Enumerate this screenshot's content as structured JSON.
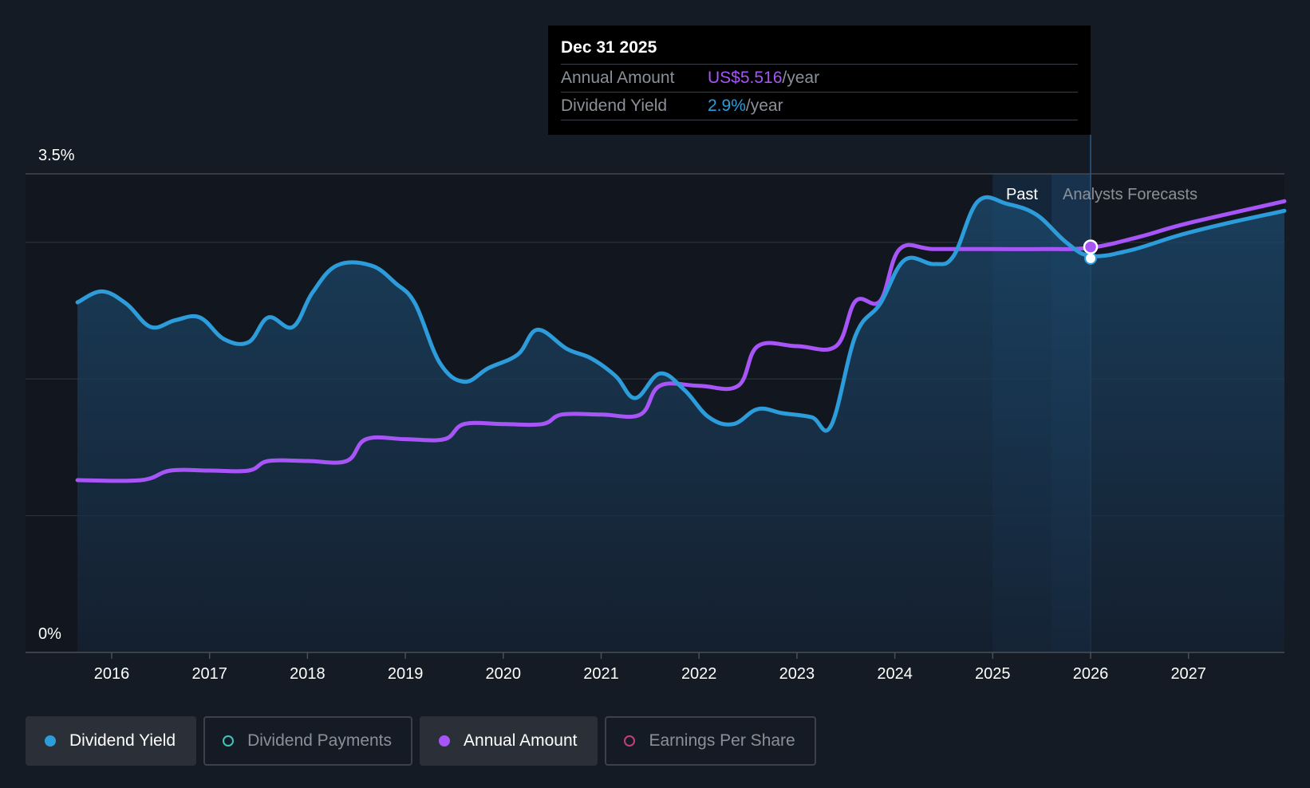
{
  "tooltip": {
    "date": "Dec 31 2025",
    "rows": [
      {
        "label": "Annual Amount",
        "value": "US$5.516",
        "unit": "/year",
        "color": "#a855f7"
      },
      {
        "label": "Dividend Yield",
        "value": "2.9%",
        "unit": "/year",
        "color": "#2d9cdb"
      }
    ]
  },
  "legend": [
    {
      "label": "Dividend Yield",
      "color": "#2d9cdb",
      "filled": true,
      "active": true
    },
    {
      "label": "Dividend Payments",
      "color": "#3fc5b8",
      "filled": false,
      "active": false
    },
    {
      "label": "Annual Amount",
      "color": "#a855f7",
      "filled": true,
      "active": true
    },
    {
      "label": "Earnings Per Share",
      "color": "#c2407a",
      "filled": false,
      "active": false
    }
  ],
  "chart_data": {
    "type": "line",
    "x_ticks": [
      "2016",
      "2017",
      "2018",
      "2019",
      "2020",
      "2021",
      "2022",
      "2023",
      "2024",
      "2025",
      "2026",
      "2027"
    ],
    "y_ticks": [
      "3.5%",
      "0%"
    ],
    "ylim": [
      0,
      3.5
    ],
    "xlim": [
      2015.65,
      2027.98
    ],
    "region_labels": {
      "past": "Past",
      "forecast": "Analysts Forecasts"
    },
    "highlight": {
      "x": 2026.0,
      "yield": 2.9,
      "amount": 5.516
    },
    "series": [
      {
        "name": "Dividend Yield",
        "color": "#2d9cdb",
        "points": [
          [
            2015.65,
            2.56
          ],
          [
            2015.9,
            2.64
          ],
          [
            2016.15,
            2.55
          ],
          [
            2016.4,
            2.38
          ],
          [
            2016.65,
            2.43
          ],
          [
            2016.9,
            2.45
          ],
          [
            2017.15,
            2.29
          ],
          [
            2017.4,
            2.27
          ],
          [
            2017.6,
            2.45
          ],
          [
            2017.85,
            2.38
          ],
          [
            2018.05,
            2.63
          ],
          [
            2018.3,
            2.83
          ],
          [
            2018.65,
            2.83
          ],
          [
            2018.9,
            2.7
          ],
          [
            2019.1,
            2.55
          ],
          [
            2019.35,
            2.12
          ],
          [
            2019.6,
            1.98
          ],
          [
            2019.85,
            2.08
          ],
          [
            2020.15,
            2.18
          ],
          [
            2020.35,
            2.36
          ],
          [
            2020.65,
            2.22
          ],
          [
            2020.9,
            2.15
          ],
          [
            2021.15,
            2.02
          ],
          [
            2021.35,
            1.86
          ],
          [
            2021.6,
            2.04
          ],
          [
            2021.85,
            1.92
          ],
          [
            2022.1,
            1.72
          ],
          [
            2022.35,
            1.67
          ],
          [
            2022.6,
            1.78
          ],
          [
            2022.85,
            1.75
          ],
          [
            2023.15,
            1.72
          ],
          [
            2023.35,
            1.66
          ],
          [
            2023.6,
            2.32
          ],
          [
            2023.85,
            2.55
          ],
          [
            2024.1,
            2.87
          ],
          [
            2024.4,
            2.84
          ],
          [
            2024.6,
            2.9
          ],
          [
            2024.85,
            3.3
          ],
          [
            2025.15,
            3.28
          ],
          [
            2025.45,
            3.2
          ],
          [
            2025.75,
            3.0
          ],
          [
            2026.0,
            2.9
          ],
          [
            2026.4,
            2.94
          ],
          [
            2026.9,
            3.05
          ],
          [
            2027.4,
            3.14
          ],
          [
            2027.98,
            3.23
          ]
        ]
      },
      {
        "name": "Annual Amount",
        "color": "#a855f7",
        "points": [
          [
            2015.65,
            1.26
          ],
          [
            2016.3,
            1.26
          ],
          [
            2016.6,
            1.33
          ],
          [
            2017.0,
            1.33
          ],
          [
            2017.4,
            1.33
          ],
          [
            2017.6,
            1.4
          ],
          [
            2018.0,
            1.4
          ],
          [
            2018.4,
            1.4
          ],
          [
            2018.6,
            1.56
          ],
          [
            2019.0,
            1.56
          ],
          [
            2019.4,
            1.56
          ],
          [
            2019.6,
            1.67
          ],
          [
            2020.0,
            1.67
          ],
          [
            2020.4,
            1.67
          ],
          [
            2020.6,
            1.74
          ],
          [
            2021.0,
            1.74
          ],
          [
            2021.4,
            1.74
          ],
          [
            2021.6,
            1.95
          ],
          [
            2022.0,
            1.95
          ],
          [
            2022.4,
            1.95
          ],
          [
            2022.6,
            2.24
          ],
          [
            2023.0,
            2.24
          ],
          [
            2023.4,
            2.24
          ],
          [
            2023.6,
            2.57
          ],
          [
            2023.85,
            2.57
          ],
          [
            2024.05,
            2.95
          ],
          [
            2024.4,
            2.95
          ],
          [
            2025.0,
            2.95
          ],
          [
            2025.5,
            2.95
          ],
          [
            2026.0,
            2.96
          ],
          [
            2026.5,
            3.04
          ],
          [
            2027.0,
            3.14
          ],
          [
            2027.98,
            3.3
          ]
        ]
      }
    ]
  }
}
